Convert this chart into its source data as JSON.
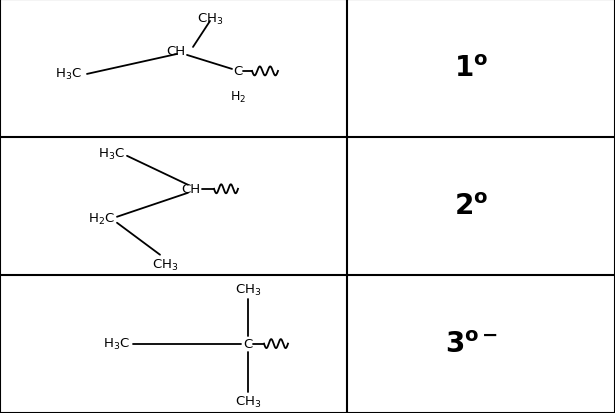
{
  "background_color": "#ffffff",
  "grid": {
    "vx": 0.565,
    "hy1": 0.667,
    "hy2": 0.333
  },
  "row1_degree": "1°",
  "row2_degree": "2°",
  "row3_degree": "3°-",
  "font_size_degree": 20,
  "font_size_chem": 9.5,
  "line_width": 1.5,
  "bond_lw": 1.3
}
